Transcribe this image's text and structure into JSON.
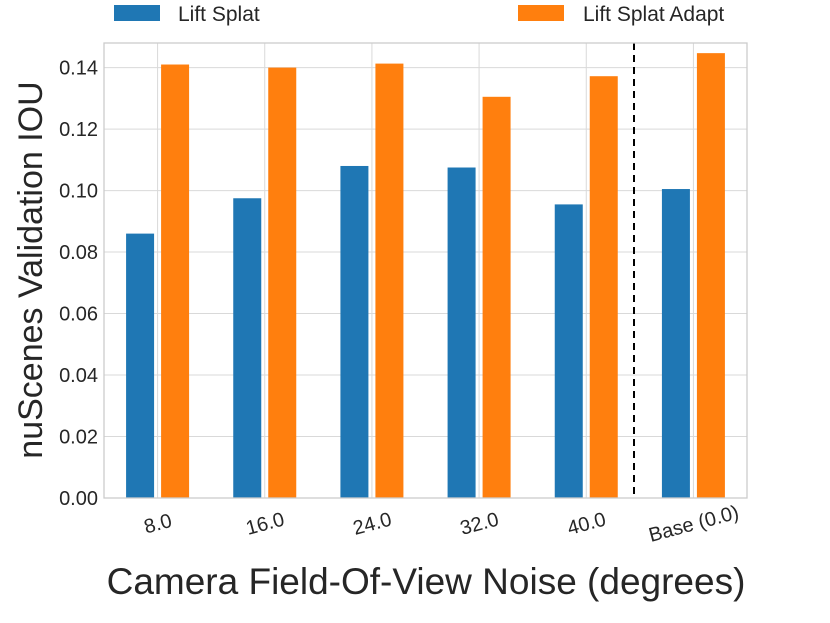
{
  "chart_data": {
    "type": "bar",
    "categories": [
      "8.0",
      "16.0",
      "24.0",
      "32.0",
      "40.0",
      "Base (0.0)"
    ],
    "series": [
      {
        "name": "Lift Splat",
        "color": "#1f77b4",
        "values": [
          0.086,
          0.0975,
          0.108,
          0.1075,
          0.0955,
          0.1005
        ]
      },
      {
        "name": "Lift Splat Adapt",
        "color": "#ff7f0e",
        "values": [
          0.141,
          0.14,
          0.1413,
          0.1305,
          0.1372,
          0.1447
        ]
      }
    ],
    "title": "",
    "xlabel": "Camera Field-Of-View Noise (degrees)",
    "ylabel": "nuScenes Validation IOU",
    "ylim": [
      0,
      0.148
    ],
    "yticks": [
      "0.00",
      "0.02",
      "0.04",
      "0.06",
      "0.08",
      "0.10",
      "0.12",
      "0.14"
    ],
    "grid": true,
    "legend_position": "top",
    "annotations": [
      "dashed vertical separator before Base (0.0)"
    ]
  }
}
